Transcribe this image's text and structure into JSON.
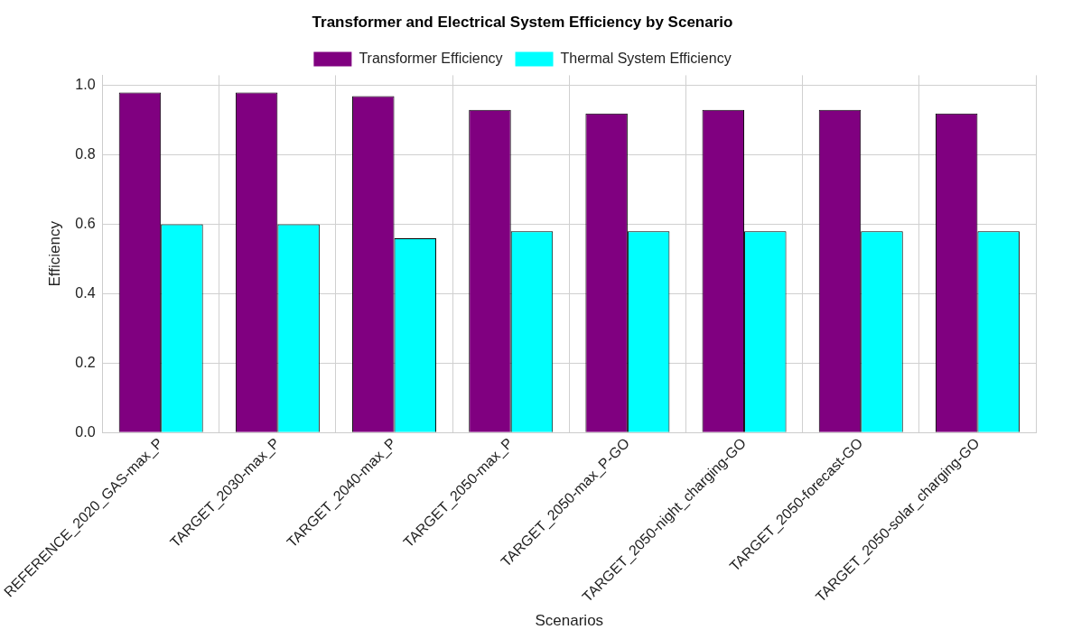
{
  "chart_data": {
    "type": "bar",
    "title": "Transformer and Electrical System Efficiency by Scenario",
    "xlabel": "Scenarios",
    "ylabel": "Efficiency",
    "categories": [
      "REFERENCE_2020_GAS-max_P",
      "TARGET_2030-max_P",
      "TARGET_2040-max_P",
      "TARGET_2050-max_P",
      "TARGET_2050-max_P-GO",
      "TARGET_2050-night_charging-GO",
      "TARGET_2050-forecast-GO",
      "TARGET_2050-solar_charging-GO"
    ],
    "series": [
      {
        "name": "Transformer Efficiency",
        "color": "#800080",
        "values": [
          0.98,
          0.98,
          0.97,
          0.93,
          0.92,
          0.93,
          0.93,
          0.92
        ]
      },
      {
        "name": "Thermal System Efficiency",
        "color": "#00ffff",
        "values": [
          0.6,
          0.6,
          0.56,
          0.58,
          0.58,
          0.58,
          0.58,
          0.58
        ]
      }
    ],
    "ylim": [
      0,
      1.03
    ],
    "yticks": [
      {
        "value": 0,
        "label": "0.0"
      },
      {
        "value": 0.2,
        "label": "0.2"
      },
      {
        "value": 0.4,
        "label": "0.4"
      },
      {
        "value": 0.6,
        "label": "0.6"
      },
      {
        "value": 0.8,
        "label": "0.8"
      },
      {
        "value": 1,
        "label": "1.0"
      }
    ],
    "grid": true,
    "legend": "top"
  }
}
